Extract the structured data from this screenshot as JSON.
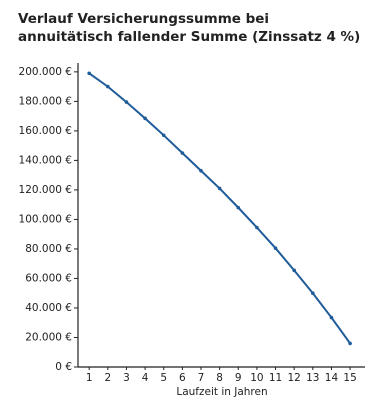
{
  "chart_data": {
    "type": "line",
    "title": "Verlauf Versicherungssumme bei annuitätisch fallender Summe (Zinssatz 4 %)",
    "x_label": "Laufzeit in Jahren",
    "x": [
      1,
      2,
      3,
      4,
      5,
      6,
      7,
      8,
      9,
      10,
      11,
      12,
      13,
      14,
      15
    ],
    "values": [
      199000,
      190000,
      179500,
      168500,
      157000,
      145000,
      133000,
      121000,
      108000,
      94500,
      80500,
      65500,
      50000,
      33500,
      16000
    ],
    "color": "#1f5c99",
    "xlim": [
      0.4,
      15.8
    ],
    "xticks": [
      1,
      2,
      3,
      4,
      5,
      6,
      7,
      8,
      9,
      10,
      11,
      12,
      13,
      14,
      15
    ],
    "ylim": [
      0,
      206000
    ],
    "yticks": [
      {
        "value": 0,
        "label": "0 €"
      },
      {
        "value": 20000,
        "label": "20.000 €"
      },
      {
        "value": 40000,
        "label": "40.000 €"
      },
      {
        "value": 60000,
        "label": "60.000 €"
      },
      {
        "value": 80000,
        "label": "80.000 €"
      },
      {
        "value": 100000,
        "label": "100.000 €"
      },
      {
        "value": 120000,
        "label": "120.000 €"
      },
      {
        "value": 140000,
        "label": "140.000 €"
      },
      {
        "value": 160000,
        "label": "160.000 €"
      },
      {
        "value": 180000,
        "label": "180.000 €"
      },
      {
        "value": 200000,
        "label": "200.000 €"
      }
    ]
  }
}
